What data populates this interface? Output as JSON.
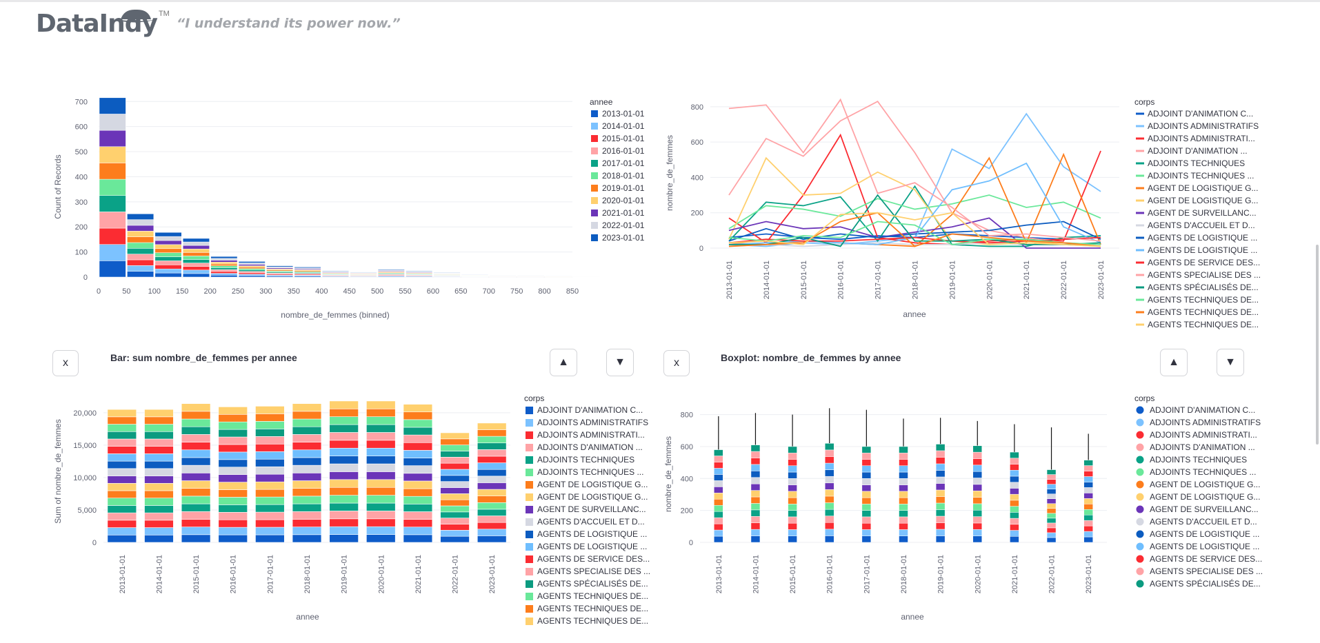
{
  "header": {
    "logo_text": "DataIndy",
    "logo_tm": "TM",
    "tagline": "“I understand its power now.”"
  },
  "panels": {
    "bar": {
      "title": "Bar: sum nombre_de_femmes per annee",
      "close": "x",
      "up": "▲",
      "down": "▼"
    },
    "box": {
      "title": "Boxplot: nombre_de_femmes by annee",
      "close": "x",
      "up": "▲",
      "down": "▼"
    }
  },
  "colors": {
    "years": [
      "#0e5cc9",
      "#7cc2ff",
      "#fb2c32",
      "#ffa3a6",
      "#0aa287",
      "#6ae89a",
      "#fd7d1c",
      "#ffd06e",
      "#6b35b8",
      "#d5d8e2",
      "#0c5cc0"
    ],
    "corps": [
      "#0e5cc9",
      "#7cc2ff",
      "#fb2c32",
      "#ffa3a6",
      "#0aa287",
      "#6ae89a",
      "#fd7d1c",
      "#ffd06e",
      "#6b35b8",
      "#d5d8e2",
      "#0c5cc0",
      "#6fbefe",
      "#fb2c32",
      "#ffa3a6",
      "#0b9b80",
      "#6ae89a",
      "#fd7d1c",
      "#ffd06e"
    ]
  },
  "chart_data": [
    {
      "type": "bar",
      "title": "",
      "xlabel": "nombre_de_femmes (binned)",
      "ylabel": "Count of Records",
      "legend_title": "annee",
      "x_ticks": [
        "0",
        "50",
        "100",
        "150",
        "200",
        "250",
        "300",
        "350",
        "400",
        "450",
        "500",
        "550",
        "600",
        "650",
        "700",
        "750",
        "800",
        "850"
      ],
      "y_ticks": [
        "0",
        "100",
        "200",
        "300",
        "400",
        "500",
        "600",
        "700"
      ],
      "ylim": [
        0,
        720
      ],
      "bin_width": 50,
      "bins_start": [
        0,
        50,
        100,
        150,
        200,
        250,
        300,
        350,
        400,
        450,
        500,
        550,
        600,
        650,
        700,
        750,
        800,
        850
      ],
      "totals": [
        715,
        252,
        178,
        154,
        82,
        62,
        45,
        40,
        24,
        20,
        30,
        24,
        18,
        10,
        6,
        6,
        4,
        2
      ],
      "series": [
        {
          "name": "2013-01-01"
        },
        {
          "name": "2014-01-01"
        },
        {
          "name": "2015-01-01"
        },
        {
          "name": "2016-01-01"
        },
        {
          "name": "2017-01-01"
        },
        {
          "name": "2018-01-01"
        },
        {
          "name": "2019-01-01"
        },
        {
          "name": "2020-01-01"
        },
        {
          "name": "2021-01-01"
        },
        {
          "name": "2022-01-01"
        },
        {
          "name": "2023-01-01"
        }
      ]
    },
    {
      "type": "line",
      "title": "",
      "xlabel": "annee",
      "ylabel": "nombre_de_femmes",
      "legend_title": "corps",
      "categories": [
        "2013-01-01",
        "2014-01-01",
        "2015-01-01",
        "2016-01-01",
        "2017-01-01",
        "2018-01-01",
        "2019-01-01",
        "2020-01-01",
        "2021-01-01",
        "2022-01-01",
        "2023-01-01"
      ],
      "y_ticks": [
        "0",
        "200",
        "400",
        "600",
        "800"
      ],
      "ylim": [
        0,
        850
      ],
      "series": [
        {
          "name": "ADJOINT D'ANIMATION C...",
          "values": [
            60,
            80,
            60,
            50,
            70,
            60,
            80,
            70,
            60,
            50,
            60
          ]
        },
        {
          "name": "ADJOINTS ADMINISTRATIFS",
          "values": [
            20,
            10,
            30,
            20,
            40,
            60,
            560,
            450,
            760,
            460,
            320
          ]
        },
        {
          "name": "ADJOINTS ADMINISTRATI...",
          "values": [
            170,
            30,
            300,
            640,
            60,
            30,
            20,
            40,
            50,
            40,
            550
          ]
        },
        {
          "name": "ADJOINT D'ANIMATION ...",
          "values": [
            300,
            620,
            520,
            720,
            830,
            540,
            200,
            100,
            60,
            30,
            20
          ]
        },
        {
          "name": "ADJOINTS TECHNIQUES",
          "values": [
            40,
            260,
            240,
            290,
            40,
            350,
            20,
            10,
            10,
            60,
            70
          ]
        },
        {
          "name": "ADJOINTS TECHNIQUES ...",
          "values": [
            110,
            240,
            220,
            180,
            280,
            220,
            250,
            300,
            230,
            260,
            170
          ]
        },
        {
          "name": "AGENT DE LOGISTIQUE G...",
          "values": [
            30,
            20,
            40,
            30,
            20,
            10,
            190,
            510,
            30,
            530,
            20
          ]
        },
        {
          "name": "AGENT DE LOGISTIQUE G...",
          "values": [
            50,
            510,
            300,
            310,
            430,
            330,
            40,
            20,
            40,
            20,
            10
          ]
        },
        {
          "name": "AGENT DE SURVEILLANC...",
          "values": [
            100,
            150,
            110,
            120,
            60,
            90,
            120,
            170,
            0,
            0,
            0
          ]
        },
        {
          "name": "AGENTS D'ACCUEIL ET D...",
          "values": [
            10,
            20,
            10,
            20,
            30,
            20,
            20,
            30,
            20,
            20,
            10
          ]
        },
        {
          "name": "AGENTS DE LOGISTIQUE ...",
          "values": [
            40,
            110,
            50,
            80,
            60,
            80,
            90,
            100,
            130,
            150,
            50
          ]
        },
        {
          "name": "AGENTS DE LOGISTIQUE ...",
          "values": [
            20,
            30,
            40,
            30,
            20,
            60,
            330,
            380,
            480,
            120,
            30
          ]
        },
        {
          "name": "AGENTS DE SERVICE DES...",
          "values": [
            30,
            50,
            40,
            40,
            50,
            60,
            40,
            30,
            40,
            50,
            60
          ]
        },
        {
          "name": "AGENTS SPECIALISE DES ...",
          "values": [
            790,
            810,
            540,
            840,
            310,
            370,
            230,
            70,
            80,
            60,
            40
          ]
        },
        {
          "name": "AGENTS SPÉCIALISÉS DE...",
          "values": [
            20,
            20,
            60,
            10,
            300,
            40,
            40,
            50,
            20,
            20,
            30
          ]
        },
        {
          "name": "AGENTS TECHNIQUES DE...",
          "values": [
            60,
            40,
            70,
            60,
            150,
            130,
            20,
            50,
            50,
            30,
            20
          ]
        },
        {
          "name": "AGENTS TECHNIQUES DE...",
          "values": [
            10,
            20,
            30,
            150,
            200,
            10,
            80,
            60,
            40,
            30,
            10
          ]
        },
        {
          "name": "AGENTS TECHNIQUES DE...",
          "values": [
            30,
            40,
            20,
            190,
            200,
            160,
            200,
            20,
            30,
            20,
            10
          ]
        }
      ]
    },
    {
      "type": "bar",
      "title": "Bar: sum nombre_de_femmes per annee",
      "xlabel": "annee",
      "ylabel": "Sum of nombre_de_femmes",
      "legend_title": "corps",
      "categories": [
        "2013-01-01",
        "2014-01-01",
        "2015-01-01",
        "2016-01-01",
        "2017-01-01",
        "2018-01-01",
        "2019-01-01",
        "2020-01-01",
        "2021-01-01",
        "2022-01-01",
        "2023-01-01"
      ],
      "y_ticks": [
        "0",
        "5,000",
        "10,000",
        "15,000",
        "20,000"
      ],
      "ylim": [
        0,
        22000
      ],
      "totals": [
        20500,
        20500,
        21400,
        20900,
        21000,
        21400,
        21800,
        21800,
        21300,
        16900,
        18400
      ],
      "series": [
        {
          "name": "ADJOINT D'ANIMATION C..."
        },
        {
          "name": "ADJOINTS ADMINISTRATIFS"
        },
        {
          "name": "ADJOINTS ADMINISTRATI..."
        },
        {
          "name": "ADJOINTS D'ANIMATION ..."
        },
        {
          "name": "ADJOINTS TECHNIQUES"
        },
        {
          "name": "ADJOINTS TECHNIQUES ..."
        },
        {
          "name": "AGENT DE LOGISTIQUE G..."
        },
        {
          "name": "AGENT DE LOGISTIQUE G..."
        },
        {
          "name": "AGENT DE SURVEILLANC..."
        },
        {
          "name": "AGENTS D'ACCUEIL ET D..."
        },
        {
          "name": "AGENTS DE LOGISTIQUE ..."
        },
        {
          "name": "AGENTS DE LOGISTIQUE ..."
        },
        {
          "name": "AGENTS DE SERVICE DES..."
        },
        {
          "name": "AGENTS SPECIALISE DES ..."
        },
        {
          "name": "AGENTS SPÉCIALISÉS DE..."
        },
        {
          "name": "AGENTS TECHNIQUES DE..."
        },
        {
          "name": "AGENTS TECHNIQUES DE..."
        },
        {
          "name": "AGENTS TECHNIQUES DE..."
        }
      ]
    },
    {
      "type": "box",
      "title": "Boxplot: nombre_de_femmes by annee",
      "xlabel": "annee",
      "ylabel": "nombre_de_femmes",
      "legend_title": "corps",
      "categories": [
        "2013-01-01",
        "2014-01-01",
        "2015-01-01",
        "2016-01-01",
        "2017-01-01",
        "2018-01-01",
        "2019-01-01",
        "2020-01-01",
        "2021-01-01",
        "2022-01-01",
        "2023-01-01"
      ],
      "y_ticks": [
        "0",
        "200",
        "400",
        "600",
        "800"
      ],
      "ylim": [
        0,
        850
      ],
      "box_top": [
        580,
        610,
        600,
        620,
        600,
        600,
        615,
        605,
        565,
        455,
        515
      ],
      "whisker_max": [
        790,
        810,
        800,
        840,
        830,
        775,
        780,
        760,
        740,
        720,
        680
      ],
      "series": [
        {
          "name": "ADJOINT D'ANIMATION C..."
        },
        {
          "name": "ADJOINTS ADMINISTRATIFS"
        },
        {
          "name": "ADJOINTS ADMINISTRATI..."
        },
        {
          "name": "ADJOINTS D'ANIMATION ..."
        },
        {
          "name": "ADJOINTS TECHNIQUES"
        },
        {
          "name": "ADJOINTS TECHNIQUES ..."
        },
        {
          "name": "AGENT DE LOGISTIQUE G..."
        },
        {
          "name": "AGENT DE LOGISTIQUE G..."
        },
        {
          "name": "AGENT DE SURVEILLANC..."
        },
        {
          "name": "AGENTS D'ACCUEIL ET D..."
        },
        {
          "name": "AGENTS DE LOGISTIQUE ..."
        },
        {
          "name": "AGENTS DE LOGISTIQUE ..."
        },
        {
          "name": "AGENTS DE SERVICE DES..."
        },
        {
          "name": "AGENTS SPECIALISE DES ..."
        },
        {
          "name": "AGENTS SPÉCIALISÉS DE..."
        }
      ]
    }
  ]
}
